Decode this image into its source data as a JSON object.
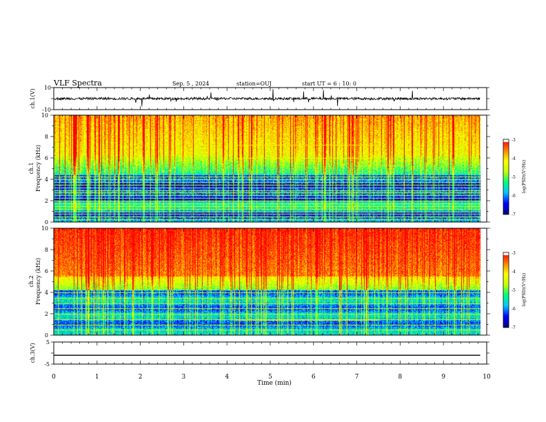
{
  "header": {
    "title": "VLF Spectra",
    "date": "Sep. 5  , 2024",
    "station": "station=OUJ",
    "start": "start  UT =   6  : 10: 0"
  },
  "chart_data": [
    {
      "type": "line",
      "panel": "ch1-waveform",
      "ylabel": "ch.1(V)",
      "ylim": [
        -10,
        10
      ],
      "y_ticks": [
        "10",
        "-10"
      ],
      "baseline": 0,
      "color": "#000000"
    },
    {
      "type": "heatmap",
      "panel": "ch1-spectrogram",
      "ylabel_top": "ch.1",
      "ylabel": "Frequency  (kHz)",
      "ylim": [
        0,
        10
      ],
      "y_ticks": [
        "0",
        "2",
        "4",
        "6",
        "8",
        "10"
      ],
      "colorbar": {
        "label": "log(PSD)(V²/Hz)",
        "ticks": [
          "-3",
          "-4",
          "-5",
          "-6",
          "-7"
        ],
        "range": [
          -7,
          -3
        ]
      },
      "hum_lines_khz": [
        0.25,
        0.5,
        0.75,
        1.0,
        1.25,
        1.5,
        1.75,
        2.0,
        2.25,
        2.5,
        2.75,
        3.0,
        3.25,
        3.5,
        3.75,
        4.0,
        4.25
      ],
      "narrowband_khz": [
        7.2,
        6.0
      ]
    },
    {
      "type": "heatmap",
      "panel": "ch2-spectrogram",
      "ylabel_top": "ch.2",
      "ylabel": "Frequency  (kHz)",
      "ylim": [
        0,
        10
      ],
      "y_ticks": [
        "0",
        "2",
        "4",
        "6",
        "8",
        "10"
      ],
      "colorbar": {
        "label": "log(PSD)(V²/Hz)",
        "ticks": [
          "-3",
          "-4",
          "-5",
          "-6",
          "-7"
        ],
        "range": [
          -7,
          -3
        ]
      },
      "hum_lines_khz": [
        0.5,
        1.0,
        1.5,
        2.0,
        2.5,
        3.0,
        3.5,
        4.0
      ],
      "narrowband_khz": [
        1.4
      ]
    },
    {
      "type": "line",
      "panel": "ch3-waveform",
      "ylabel": "ch.3(V)",
      "ylim": [
        -5,
        5
      ],
      "y_ticks": [
        "5",
        "-5"
      ],
      "values": [
        -1,
        -1
      ],
      "x": [
        0,
        9.85
      ],
      "color": "#000000"
    }
  ],
  "x_axis": {
    "label": "Time  (min)",
    "xlim": [
      0,
      10
    ],
    "ticks": [
      "0",
      "1",
      "2",
      "3",
      "4",
      "5",
      "6",
      "7",
      "8",
      "9",
      "10"
    ]
  },
  "colors": {
    "scale": [
      "#000080",
      "#0000ff",
      "#00c8ff",
      "#00ff80",
      "#c8ff00",
      "#ffff00",
      "#ff8000",
      "#ff0000",
      "#ffffff"
    ]
  }
}
